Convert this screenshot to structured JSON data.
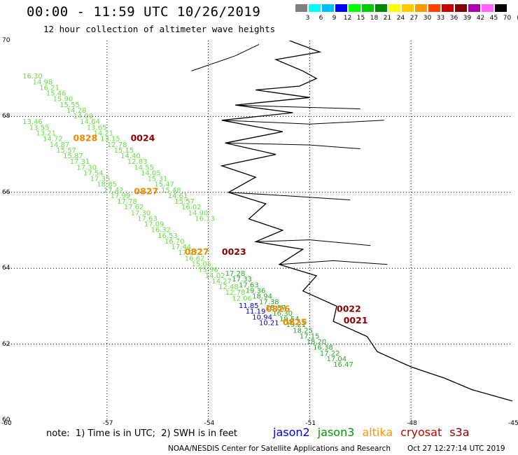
{
  "header": {
    "title": "00:00 - 11:59 UTC 10/26/2019",
    "subtitle": "12 hour collection of altimeter wave heights"
  },
  "colorbar": {
    "labels": [
      "3",
      "6",
      "9",
      "12",
      "15",
      "18",
      "21",
      "24",
      "27",
      "30",
      "33",
      "36",
      "39",
      "42",
      "45",
      "70"
    ],
    "unit": "(ft)",
    "colors": [
      "#808080",
      "#00ffff",
      "#00bfff",
      "#0000ff",
      "#00ff00",
      "#00cc00",
      "#008800",
      "#ffff00",
      "#ffcc00",
      "#ff9900",
      "#ff4400",
      "#cc0000",
      "#800000",
      "#aa00aa",
      "#ff66ff",
      "#000000"
    ]
  },
  "axes": {
    "x_ticks": [
      "-60",
      "-57",
      "-54",
      "-51",
      "-48",
      "-45"
    ],
    "y_ticks": [
      "70",
      "68",
      "66",
      "64",
      "62",
      "60"
    ]
  },
  "map": {
    "land_outline_color": "#000000",
    "grid_style": "dotted",
    "tracks": [
      {
        "satellite": "jason3",
        "color": "#66dd44",
        "points": [
          [
            "16.30",
            -59.5,
            69.0
          ],
          [
            "14.98",
            -59.2,
            68.85
          ],
          [
            "16.21",
            -59.0,
            68.7
          ],
          [
            "15.46",
            -58.8,
            68.55
          ],
          [
            "15.90",
            -58.6,
            68.4
          ],
          [
            "15.55",
            -58.4,
            68.25
          ],
          [
            "14.28",
            -58.2,
            68.1
          ],
          [
            "14.09",
            -58.0,
            67.95
          ],
          [
            "14.64",
            -57.8,
            67.8
          ],
          [
            "13.65",
            -57.6,
            67.65
          ],
          [
            "14.21",
            -57.4,
            67.5
          ],
          [
            "13.15",
            -57.2,
            67.35
          ],
          [
            "12.78",
            -57.0,
            67.2
          ],
          [
            "15.15",
            -56.8,
            67.05
          ],
          [
            "14.40",
            -56.6,
            66.9
          ],
          [
            "12.83",
            -56.4,
            66.75
          ],
          [
            "14.55",
            -56.2,
            66.6
          ],
          [
            "14.05",
            -56.0,
            66.45
          ],
          [
            "15.31",
            -55.8,
            66.3
          ],
          [
            "15.47",
            -55.6,
            66.15
          ],
          [
            "15.48",
            -55.4,
            66.0
          ],
          [
            "14.61",
            -55.2,
            65.85
          ],
          [
            "15.57",
            -55.0,
            65.7
          ],
          [
            "16.02",
            -54.8,
            65.55
          ],
          [
            "14.90",
            -54.6,
            65.4
          ],
          [
            "16.13",
            -54.4,
            65.25
          ]
        ]
      },
      {
        "satellite": "jason3",
        "color": "#66dd44",
        "points": [
          [
            "13.46",
            -59.5,
            67.8
          ],
          [
            "13.55",
            -59.3,
            67.65
          ],
          [
            "13.21",
            -59.1,
            67.5
          ],
          [
            "14.72",
            -58.9,
            67.35
          ],
          [
            "14.87",
            -58.7,
            67.2
          ],
          [
            "15.57",
            -58.5,
            67.05
          ],
          [
            "15.87",
            -58.3,
            66.9
          ],
          [
            "17.31",
            -58.1,
            66.75
          ],
          [
            "17.30",
            -57.9,
            66.6
          ],
          [
            "17.54",
            -57.7,
            66.45
          ],
          [
            "17.35",
            -57.5,
            66.3
          ],
          [
            "18.85",
            -57.3,
            66.15
          ],
          [
            "17.42",
            -57.1,
            66.0
          ],
          [
            "17.99",
            -56.9,
            65.85
          ],
          [
            "17.78",
            -56.7,
            65.7
          ],
          [
            "17.62",
            -56.5,
            65.55
          ],
          [
            "17.30",
            -56.3,
            65.4
          ],
          [
            "17.63",
            -56.1,
            65.25
          ],
          [
            "17.09",
            -55.9,
            65.1
          ],
          [
            "16.32",
            -55.7,
            64.95
          ],
          [
            "16.53",
            -55.5,
            64.8
          ],
          [
            "16.70",
            -55.3,
            64.65
          ],
          [
            "17.44",
            -55.1,
            64.5
          ],
          [
            "17.27",
            -54.9,
            64.35
          ],
          [
            "16.62",
            -54.7,
            64.2
          ],
          [
            "15.05",
            -54.5,
            64.05
          ],
          [
            "15.96",
            -54.3,
            63.9
          ],
          [
            "14.02",
            -54.1,
            63.75
          ],
          [
            "14.27",
            -53.9,
            63.6
          ],
          [
            "12.48",
            -53.7,
            63.45
          ],
          [
            "12.78",
            -53.5,
            63.3
          ],
          [
            "12.06",
            -53.3,
            63.15
          ]
        ]
      },
      {
        "satellite": "jason3",
        "color": "#22aa22",
        "points": [
          [
            "17.28",
            -53.5,
            63.8
          ],
          [
            "17.33",
            -53.3,
            63.65
          ],
          [
            "17.63",
            -53.1,
            63.5
          ],
          [
            "19.36",
            -52.9,
            63.35
          ],
          [
            "18.94",
            -52.7,
            63.2
          ],
          [
            "17.38",
            -52.5,
            63.05
          ],
          [
            "15.87",
            -52.3,
            62.9
          ],
          [
            "16.30",
            -52.1,
            62.75
          ],
          [
            "19.54",
            -51.9,
            62.6
          ],
          [
            "19.21",
            -51.7,
            62.45
          ],
          [
            "18.25",
            -51.5,
            62.3
          ],
          [
            "17.15",
            -51.3,
            62.15
          ],
          [
            "18.20",
            -51.1,
            62.0
          ],
          [
            "16.38",
            -50.9,
            61.85
          ],
          [
            "17.22",
            -50.7,
            61.7
          ],
          [
            "17.04",
            -50.5,
            61.55
          ],
          [
            "16.47",
            -50.3,
            61.4
          ]
        ]
      },
      {
        "satellite": "jason2",
        "color": "#0000cc",
        "points": [
          [
            "11.85",
            -53.1,
            62.95
          ],
          [
            "11.19",
            -52.9,
            62.8
          ],
          [
            "10.94",
            -52.7,
            62.65
          ],
          [
            "10.21",
            -52.5,
            62.5
          ]
        ]
      }
    ],
    "time_labels": [
      {
        "text": "0828",
        "satellite": "altika",
        "color": "#ee8800",
        "lon": -58.0,
        "lat": 67.35
      },
      {
        "text": "0024",
        "satellite": "cryosat",
        "color": "#880000",
        "lon": -56.3,
        "lat": 67.35
      },
      {
        "text": "0827",
        "satellite": "altika",
        "color": "#ee8800",
        "lon": -56.2,
        "lat": 65.95
      },
      {
        "text": "0827",
        "satellite": "altika",
        "color": "#ee8800",
        "lon": -54.7,
        "lat": 64.35
      },
      {
        "text": "0023",
        "satellite": "cryosat",
        "color": "#880000",
        "lon": -53.6,
        "lat": 64.35
      },
      {
        "text": "0826",
        "satellite": "altika",
        "color": "#ee8800",
        "lon": -52.3,
        "lat": 62.85
      },
      {
        "text": "0022",
        "satellite": "cryosat",
        "color": "#880000",
        "lon": -50.2,
        "lat": 62.85
      },
      {
        "text": "0825",
        "satellite": "altika",
        "color": "#ee8800",
        "lon": -51.8,
        "lat": 62.5
      },
      {
        "text": "0021",
        "satellite": "cryosat",
        "color": "#880000",
        "lon": -50.0,
        "lat": 62.55
      }
    ]
  },
  "footer": {
    "note": "note:  1) Time is in UTC;  2) SWH is in feet",
    "legend": [
      {
        "name": "jason2",
        "color": "#0000ee"
      },
      {
        "name": "jason3",
        "color": "#009900"
      },
      {
        "name": "altika",
        "color": "#ff9900"
      },
      {
        "name": "cryosat",
        "color": "#cc0000"
      },
      {
        "name": "s3a",
        "color": "#880000"
      }
    ],
    "credit": "NOAA/NESDIS Center for Satellite Applications and Research",
    "timestamp": "Oct 27 12:27:14 UTC 2019"
  }
}
